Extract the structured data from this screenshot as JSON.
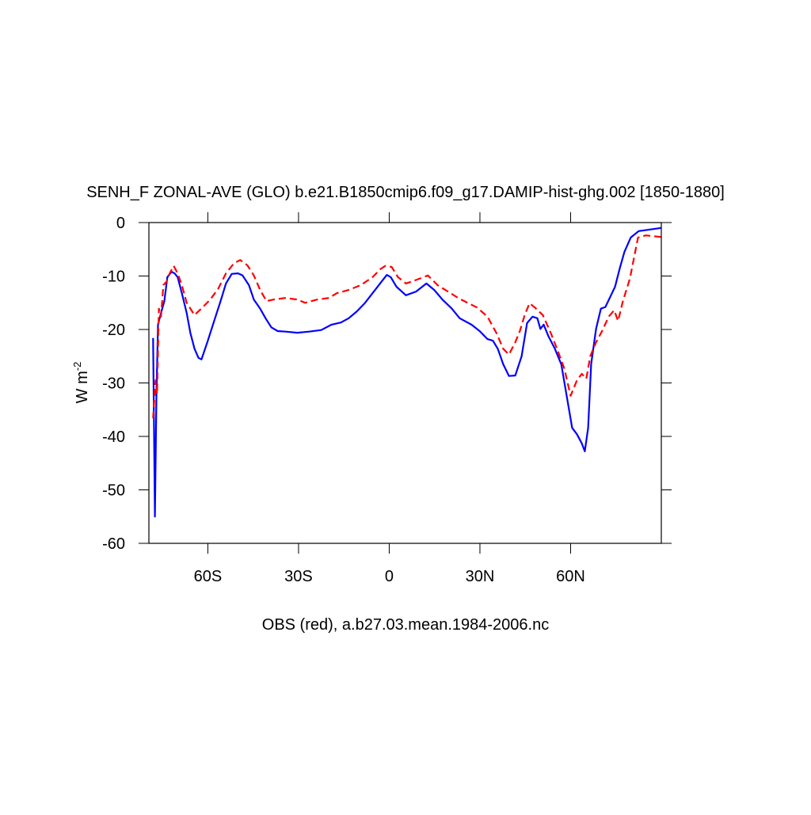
{
  "chart_data": {
    "type": "line",
    "title": "SENH_F ZONAL-AVE (GLO) b.e21.B1850cmip6.f09_g17.DAMIP-hist-ghg.002 [1850-1880]",
    "xlabel": "OBS (red), a.b27.03.mean.1984-2006.nc",
    "ylabel": "W m",
    "ylabel_superscript": "-2",
    "xlim": [
      -79.5,
      90
    ],
    "ylim": [
      -60,
      0
    ],
    "xticks": [
      {
        "value": -60,
        "label": "60S"
      },
      {
        "value": -30,
        "label": "30S"
      },
      {
        "value": 0,
        "label": "0"
      },
      {
        "value": 30,
        "label": "30N"
      },
      {
        "value": 60,
        "label": "60N"
      }
    ],
    "yticks": [
      0,
      -10,
      -20,
      -30,
      -40,
      -50,
      -60
    ],
    "series": [
      {
        "color": "#0000ff",
        "dashed": false,
        "x": [
          -78.1,
          -77.5,
          -77,
          -76.5,
          -75.5,
          -74.4,
          -73.4,
          -72,
          -71,
          -70,
          -68.6,
          -67,
          -65.8,
          -64.4,
          -63.1,
          -62.1,
          -60,
          -57.9,
          -55.8,
          -54,
          -52.1,
          -50,
          -48.5,
          -46.4,
          -44.8,
          -42.7,
          -40.9,
          -39,
          -36.9,
          -34.3,
          -30.4,
          -26.5,
          -22.5,
          -19.1,
          -16,
          -13.4,
          -10.7,
          -8.1,
          -5.5,
          -2.9,
          -0.8,
          0.5,
          2.4,
          5.5,
          8.9,
          12.3,
          14.9,
          17.6,
          20.7,
          23.3,
          27.2,
          29.9,
          32.5,
          34.3,
          35.9,
          37.7,
          39.6,
          41.7,
          43.8,
          45.6,
          47.4,
          49,
          50,
          51.1,
          52.7,
          54.8,
          56.9,
          58.7,
          60.5,
          62.1,
          63.7,
          64.7,
          65.8,
          66.8,
          68.4,
          70,
          71.5,
          73.1,
          74.7,
          76.2,
          77.8,
          79.9,
          82.5,
          86.2,
          89.9
        ],
        "values": [
          -21.6,
          -55,
          -32.4,
          -19.1,
          -16.9,
          -14.7,
          -10.2,
          -9.2,
          -9.5,
          -10.2,
          -13.2,
          -16.9,
          -20.6,
          -23.6,
          -25.3,
          -25.6,
          -22.1,
          -18.4,
          -14.7,
          -11.4,
          -9.6,
          -9.5,
          -9.9,
          -11.7,
          -14.4,
          -16.1,
          -17.9,
          -19.6,
          -20.3,
          -20.4,
          -20.6,
          -20.4,
          -20.1,
          -19.1,
          -18.7,
          -17.9,
          -16.6,
          -15.1,
          -13.2,
          -11.3,
          -9.8,
          -10.2,
          -12,
          -13.6,
          -12.9,
          -11.4,
          -12.6,
          -14.4,
          -16.1,
          -17.9,
          -19.1,
          -20.3,
          -21.8,
          -22.1,
          -23.6,
          -26.5,
          -28.7,
          -28.6,
          -25,
          -18.8,
          -17.6,
          -17.9,
          -19.9,
          -19.1,
          -21.3,
          -23.6,
          -26.5,
          -32.4,
          -38.4,
          -39.6,
          -41.3,
          -42.8,
          -38.4,
          -26.5,
          -19.9,
          -16.1,
          -15.8,
          -13.9,
          -12,
          -8.7,
          -5.5,
          -2.8,
          -1.6,
          -1.3,
          -1
        ]
      },
      {
        "color": "#ff0000",
        "dashed": true,
        "x": [
          -78.1,
          -77.3,
          -76.8,
          -76.2,
          -75.5,
          -74.7,
          -73.6,
          -72.6,
          -71.3,
          -70,
          -68.6,
          -67,
          -64.4,
          -61.8,
          -59.2,
          -56.6,
          -54,
          -51.3,
          -49.3,
          -46.9,
          -44.8,
          -42.7,
          -40.6,
          -38.2,
          -34.3,
          -30.4,
          -27.8,
          -23.8,
          -19.9,
          -17.3,
          -13.4,
          -9.4,
          -5.5,
          -2.9,
          -1.3,
          0.8,
          2.9,
          5.5,
          8.6,
          12.8,
          16,
          19.4,
          22.8,
          25.9,
          29.1,
          32.5,
          35.4,
          37.7,
          39.6,
          41.7,
          43.2,
          44.8,
          46.4,
          48.2,
          50.8,
          53.4,
          55.5,
          57.9,
          60,
          62.1,
          63.7,
          65.2,
          66.5,
          68.4,
          70.4,
          72.6,
          74.4,
          75.7,
          77.3,
          79.6,
          82.3,
          84.9,
          89.9
        ],
        "values": [
          -36.6,
          -29.5,
          -32.1,
          -16.1,
          -17.6,
          -11.7,
          -11,
          -9.5,
          -8.1,
          -9.5,
          -11.7,
          -15,
          -17.3,
          -15.9,
          -14.4,
          -12.4,
          -9.5,
          -7.6,
          -7,
          -8,
          -9.9,
          -12.6,
          -14.7,
          -14.4,
          -14.1,
          -14.4,
          -15,
          -14.4,
          -14.1,
          -13.2,
          -12.6,
          -11.7,
          -10.2,
          -8.7,
          -8.1,
          -8.3,
          -10.2,
          -11.4,
          -10.8,
          -9.9,
          -11.7,
          -12.9,
          -14.1,
          -15,
          -15.9,
          -17.6,
          -20.6,
          -23.6,
          -24.7,
          -22.4,
          -20.3,
          -17.3,
          -15.1,
          -15.9,
          -17.3,
          -20.6,
          -23.6,
          -27.3,
          -32.4,
          -29.5,
          -28.3,
          -29.2,
          -25,
          -22.4,
          -20.3,
          -17.6,
          -16.4,
          -18.4,
          -14.7,
          -10.5,
          -2.8,
          -2.4,
          -2.7
        ]
      }
    ]
  }
}
